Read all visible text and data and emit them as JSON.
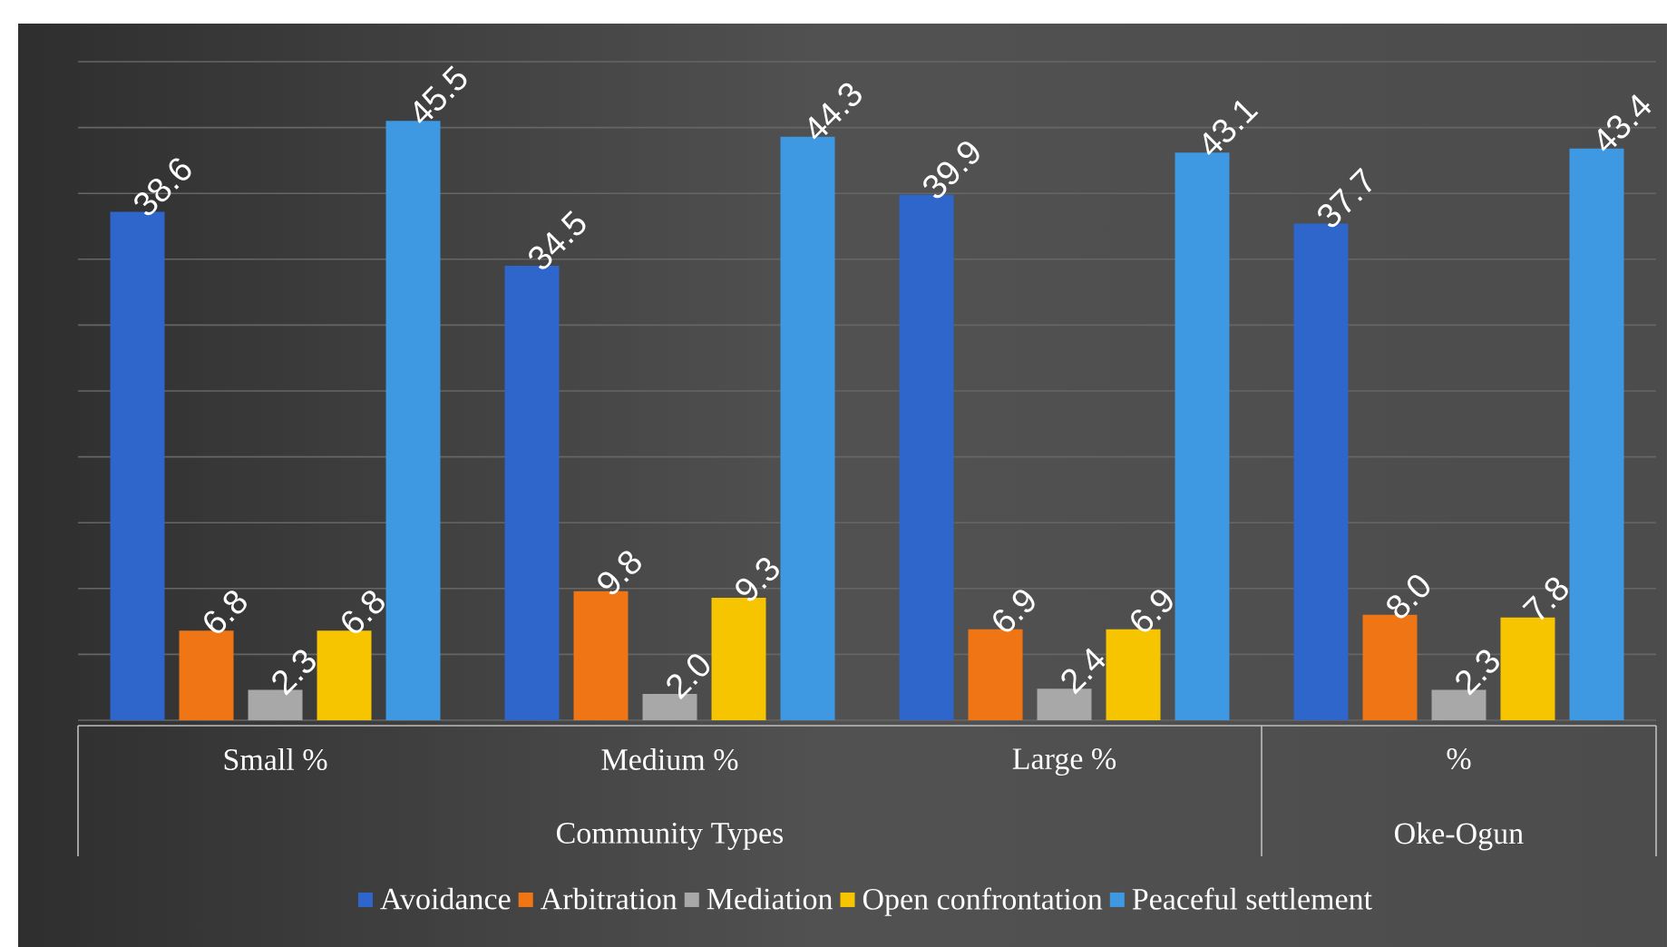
{
  "chart_data": {
    "type": "bar",
    "categories": [
      "Small %",
      "Medium %",
      "Large %",
      "%"
    ],
    "series": [
      {
        "name": "Avoidance",
        "color": "#2e66cc",
        "values": [
          38.6,
          34.5,
          39.9,
          37.7
        ],
        "value_labels": [
          "38.6",
          "34.5",
          "39.9",
          "37.7"
        ]
      },
      {
        "name": "Arbitration",
        "color": "#f07515",
        "values": [
          6.8,
          9.8,
          6.9,
          8.0
        ],
        "value_labels": [
          "6.8",
          "9.8",
          "6.9",
          "8.0"
        ]
      },
      {
        "name": "Mediation",
        "color": "#a8a8a8",
        "values": [
          2.3,
          2.0,
          2.4,
          2.3
        ],
        "value_labels": [
          "2.3",
          "2.0",
          "2.4",
          "2.3"
        ]
      },
      {
        "name": "Open confrontation",
        "color": "#f7c500",
        "values": [
          6.8,
          9.3,
          6.9,
          7.8
        ],
        "value_labels": [
          "6.8",
          "9.3",
          "6.9",
          "7.8"
        ]
      },
      {
        "name": "Peaceful settlement",
        "color": "#3f98e2",
        "values": [
          45.5,
          44.3,
          43.1,
          43.4
        ],
        "value_labels": [
          "45.5",
          "44.3",
          "43.1",
          "43.4"
        ]
      }
    ],
    "ylim": [
      0,
      50
    ],
    "yticks": [
      {
        "value": 0,
        "label": null
      },
      {
        "value": 5,
        "label": null
      },
      {
        "value": 10,
        "label": null
      },
      {
        "value": 15,
        "label": null
      },
      {
        "value": 20,
        "label": null
      },
      {
        "value": 25,
        "label": null
      },
      {
        "value": 30,
        "label": null
      },
      {
        "value": 35,
        "label": null
      },
      {
        "value": 40,
        "label": null
      },
      {
        "value": 45,
        "label": null
      },
      {
        "value": 50,
        "label": null
      }
    ],
    "grid": "y",
    "legend": "bottom",
    "tick_labels": "x",
    "annotations": [
      "Community Types",
      "Oke-Ogun"
    ]
  }
}
